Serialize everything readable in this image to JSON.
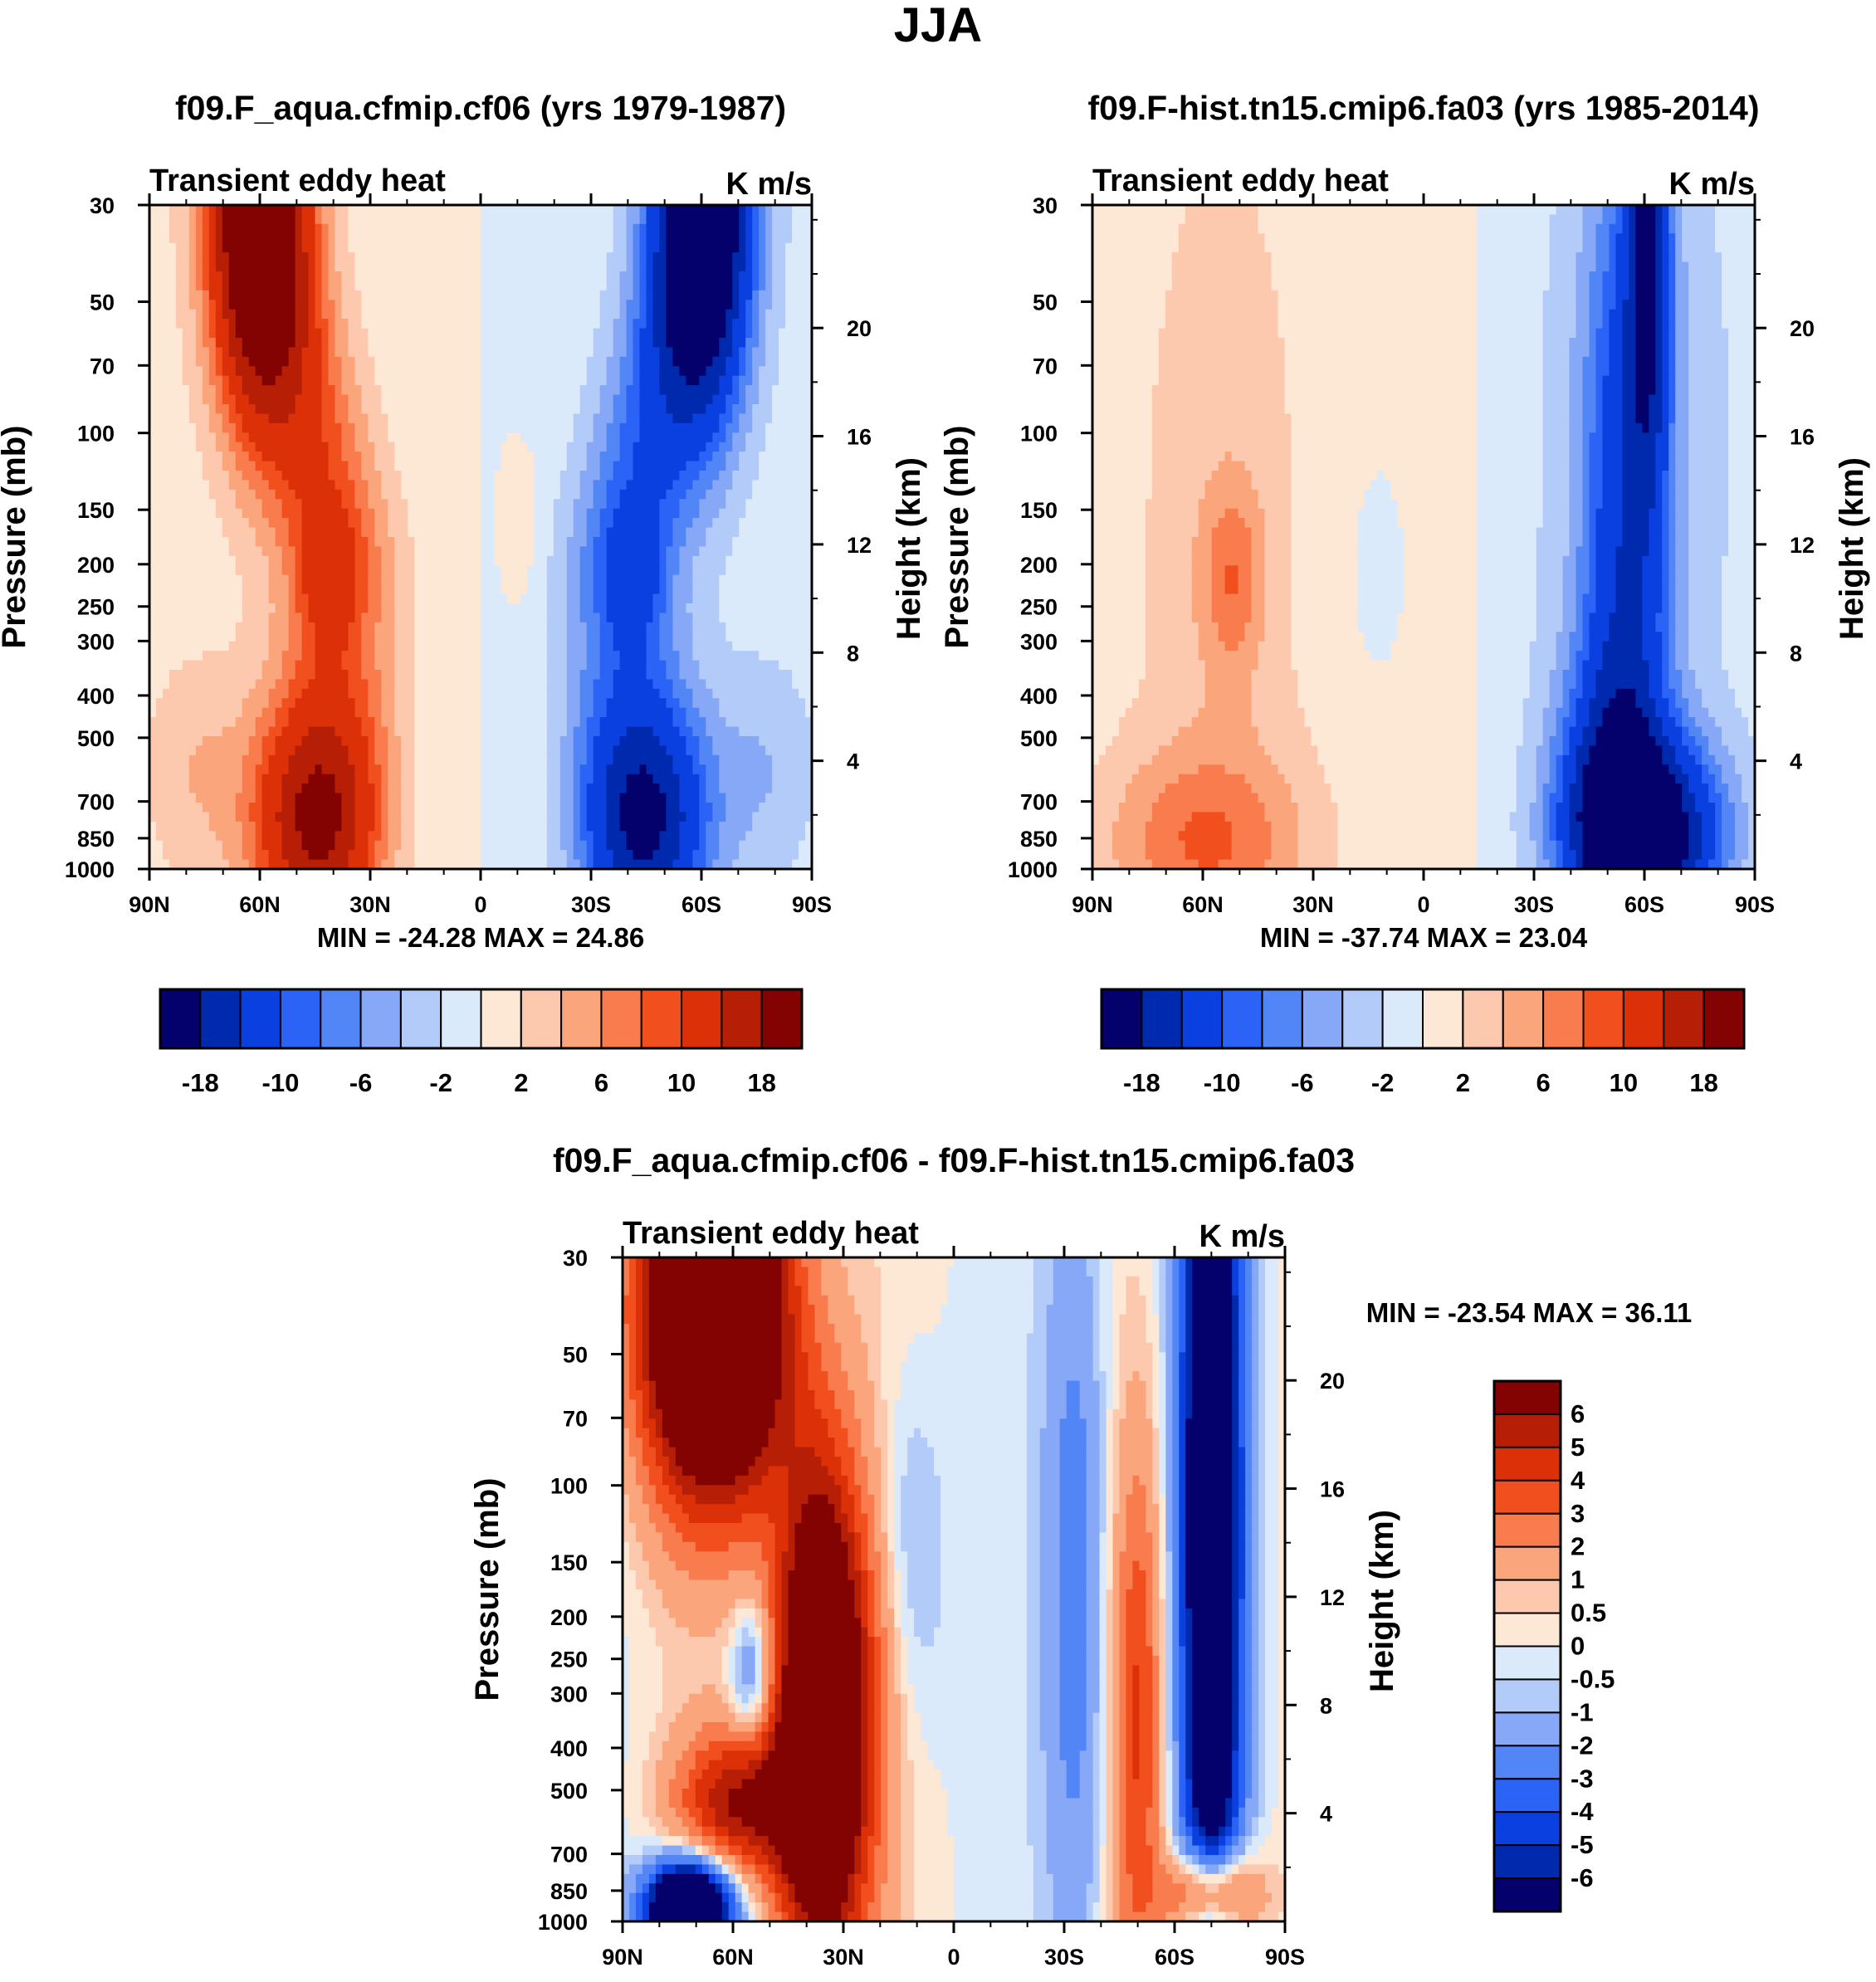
{
  "figure_title": "JJA",
  "chart_data": [
    {
      "type": "contour",
      "title": "f09.F_aqua.cfmip.cf06 (yrs 1979-1987)",
      "left_string": "Transient eddy heat",
      "units": "K m/s",
      "ylabel": "Pressure (mb)",
      "ylabel2": "Height (km)",
      "xticks": [
        "90N",
        "60N",
        "30N",
        "0",
        "30S",
        "60S",
        "90S"
      ],
      "pressure_levels": [
        30,
        50,
        70,
        100,
        150,
        200,
        250,
        300,
        400,
        500,
        700,
        850,
        1000
      ],
      "height_ticks": [
        20,
        16,
        12,
        8,
        4
      ],
      "min": -24.28,
      "max": 24.86,
      "stats": "MIN = -24.28  MAX =  24.86",
      "colorbar_labels": [
        "-18",
        "-10",
        "-6",
        "-2",
        "2",
        "6",
        "10",
        "18"
      ]
    },
    {
      "type": "contour",
      "title": "f09.F-hist.tn15.cmip6.fa03 (yrs 1985-2014)",
      "left_string": "Transient eddy heat",
      "units": "K m/s",
      "ylabel": "Pressure (mb)",
      "ylabel2": "Height (km)",
      "xticks": [
        "90N",
        "60N",
        "30N",
        "0",
        "30S",
        "60S",
        "90S"
      ],
      "pressure_levels": [
        30,
        50,
        70,
        100,
        150,
        200,
        250,
        300,
        400,
        500,
        700,
        850,
        1000
      ],
      "height_ticks": [
        20,
        16,
        12,
        8,
        4
      ],
      "min": -37.74,
      "max": 23.04,
      "stats": "MIN = -37.74  MAX =  23.04",
      "colorbar_labels": [
        "-18",
        "-10",
        "-6",
        "-2",
        "2",
        "6",
        "10",
        "18"
      ]
    },
    {
      "type": "contour",
      "title": "f09.F_aqua.cfmip.cf06 - f09.F-hist.tn15.cmip6.fa03",
      "left_string": "Transient eddy heat",
      "units": "K m/s",
      "ylabel": "Pressure (mb)",
      "ylabel2": "Height (km)",
      "xticks": [
        "90N",
        "60N",
        "30N",
        "0",
        "30S",
        "60S",
        "90S"
      ],
      "pressure_levels": [
        30,
        50,
        70,
        100,
        150,
        200,
        250,
        300,
        400,
        500,
        700,
        850,
        1000
      ],
      "height_ticks": [
        20,
        16,
        12,
        8,
        4
      ],
      "min": -23.54,
      "max": 36.11,
      "stats": "MIN = -23.54  MAX =  36.11",
      "colorbar_labels": [
        "6",
        "5",
        "4",
        "3",
        "2",
        "1",
        "0.5",
        "0",
        "-0.5",
        "-1",
        "-2",
        "-3",
        "-4",
        "-5",
        "-6"
      ]
    }
  ],
  "colors": {
    "scale16": [
      "#04006c",
      "#002aae",
      "#0a3fe0",
      "#2b63f6",
      "#5286f7",
      "#86a8f6",
      "#b2cbf8",
      "#dbeafb",
      "#fde8d6",
      "#fcc9ae",
      "#fba57c",
      "#f87c4d",
      "#f14f1e",
      "#db3008",
      "#b61f06",
      "#830202"
    ],
    "scale14": [
      "#830202",
      "#b61f06",
      "#db3008",
      "#f14f1e",
      "#f87c4d",
      "#fba57c",
      "#fcc9ae",
      "#fde8d6",
      "#dbeafb",
      "#b2cbf8",
      "#86a8f6",
      "#5286f7",
      "#2b63f6",
      "#0a3fe0",
      "#002aae",
      "#04006c"
    ]
  }
}
